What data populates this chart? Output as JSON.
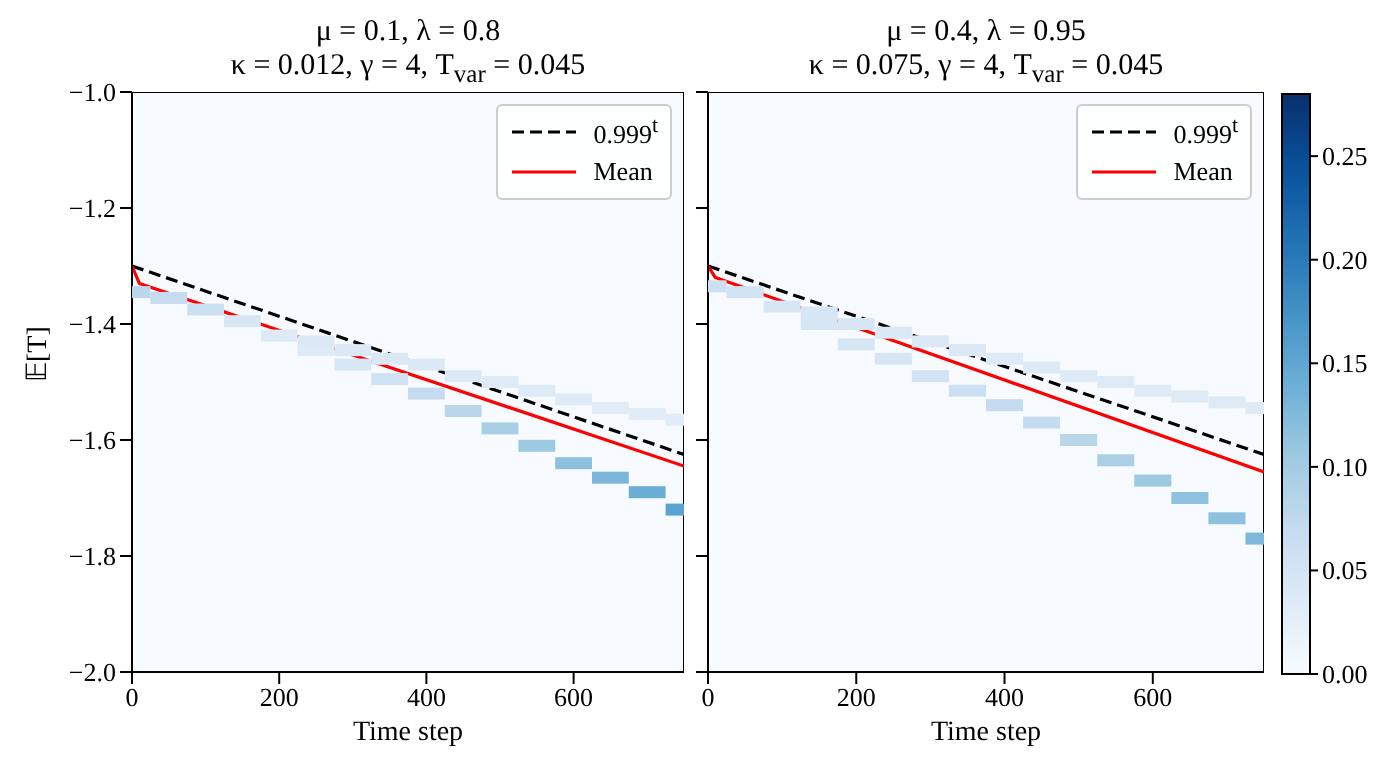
{
  "chart_data": [
    {
      "type": "line",
      "title": "μ = 0.1, λ = 0.8\nκ = 0.012, γ = 4, T$_{var}$ = 0.045",
      "xlabel": "Time step",
      "ylabel": "𝔼[T]",
      "xlim": [
        0,
        750
      ],
      "xticks": [
        0,
        200,
        400,
        600
      ],
      "ylim": [
        -2.0,
        -1.0
      ],
      "yticks": [
        {
          "value": -2.0,
          "label": "−2.0"
        },
        {
          "value": -1.8,
          "label": "−1.8"
        },
        {
          "value": -1.6,
          "label": "−1.6"
        },
        {
          "value": -1.4,
          "label": "−1.4"
        },
        {
          "value": -1.2,
          "label": "−1.2"
        },
        {
          "value": -1.0,
          "label": "−1.0"
        }
      ],
      "legend": "top right",
      "series": [
        {
          "type": "scatter",
          "marker": "square",
          "x": [
            0,
            50,
            100,
            150,
            200,
            250,
            300,
            350,
            400,
            450,
            500,
            550,
            600,
            650,
            700,
            750
          ],
          "values": [
            -1.345,
            -1.355,
            -1.375,
            -1.395,
            -1.42,
            -1.445,
            -1.47,
            -1.495,
            -1.52,
            -1.55,
            -1.58,
            -1.61,
            -1.64,
            -1.665,
            -1.69,
            -1.72
          ],
          "colors": [
            "#bad6eb",
            "#c6dbef",
            "#cde0f1",
            "#d8e7f5",
            "#deebf7",
            "#deebf7",
            "#d8e7f5",
            "#d0e1f2",
            "#c6dbef",
            "#bad6eb",
            "#a9cfe5",
            "#9ecae1",
            "#8cc0dd",
            "#7ab6d9",
            "#6aaed6",
            "#5ba3d0"
          ]
        },
        {
          "type": "scatter",
          "marker": "square",
          "x": [
            250,
            300,
            350,
            400,
            450,
            500,
            550,
            600,
            650,
            700,
            750
          ],
          "values": [
            -1.43,
            -1.445,
            -1.46,
            -1.47,
            -1.49,
            -1.5,
            -1.515,
            -1.53,
            -1.545,
            -1.555,
            -1.565
          ],
          "colors": [
            "#dbe9f6",
            "#dbe9f6",
            "#dbe9f6",
            "#dbe9f6",
            "#dbe9f6",
            "#deebf7",
            "#deebf7",
            "#deebf7",
            "#e0ecf8",
            "#e0ecf8",
            "#e0ecf8"
          ]
        },
        {
          "name": "0.999$^{t}$",
          "color": "#000000",
          "line_style": "dashed",
          "marker": "none",
          "x": [
            0,
            750
          ],
          "values": [
            -1.3,
            -1.625
          ]
        },
        {
          "name": "Mean",
          "color": "#ff0000",
          "line_style": "solid",
          "marker": "none",
          "x": [
            0,
            10,
            750
          ],
          "values": [
            -1.3,
            -1.33,
            -1.645
          ]
        }
      ]
    },
    {
      "type": "line",
      "title": "μ = 0.4, λ = 0.95\nκ = 0.075, γ = 4, T$_{var}$ = 0.045",
      "xlabel": "Time step",
      "xlim": [
        0,
        750
      ],
      "xticks": [
        0,
        200,
        400,
        600
      ],
      "ylim": [
        -2.0,
        -1.0
      ],
      "yticks": [
        {
          "value": -2.0,
          "label": null
        },
        {
          "value": -1.8,
          "label": null
        },
        {
          "value": -1.6,
          "label": null
        },
        {
          "value": -1.4,
          "label": null
        },
        {
          "value": -1.2,
          "label": null
        },
        {
          "value": -1.0,
          "label": null
        }
      ],
      "tick_labels": "x",
      "clim": [
        0,
        0.28
      ],
      "cticks": [
        {
          "value": 0,
          "label": "0.00"
        },
        {
          "value": 0.05,
          "label": "0.05"
        },
        {
          "value": 0.1,
          "label": "0.10"
        },
        {
          "value": 0.15,
          "label": "0.15"
        },
        {
          "value": 0.2,
          "label": "0.20"
        },
        {
          "value": 0.25,
          "label": "0.25"
        }
      ],
      "legend": "top right",
      "series": [
        {
          "type": "scatter",
          "marker": "square",
          "x": [
            0,
            50,
            100,
            150,
            200,
            250,
            300,
            350,
            400,
            450,
            500,
            550,
            600,
            650,
            700,
            750
          ],
          "values": [
            -1.335,
            -1.345,
            -1.37,
            -1.4,
            -1.435,
            -1.46,
            -1.49,
            -1.515,
            -1.54,
            -1.57,
            -1.6,
            -1.635,
            -1.67,
            -1.7,
            -1.735,
            -1.77
          ],
          "colors": [
            "#cce0f1",
            "#d2e3f3",
            "#d7e6f5",
            "#d7e6f5",
            "#d7e6f5",
            "#d7e6f5",
            "#d2e3f3",
            "#cce0f1",
            "#c6dbef",
            "#c6dbef",
            "#b9d6ea",
            "#abd0e6",
            "#9ecae1",
            "#8dc1dd",
            "#8dc1dd",
            "#7db8da"
          ]
        },
        {
          "type": "scatter",
          "marker": "square",
          "x": [
            150,
            200,
            250,
            300,
            350,
            400,
            450,
            500,
            550,
            600,
            650,
            700,
            750
          ],
          "values": [
            -1.38,
            -1.4,
            -1.415,
            -1.43,
            -1.445,
            -1.46,
            -1.475,
            -1.49,
            -1.5,
            -1.515,
            -1.525,
            -1.535,
            -1.545
          ],
          "colors": [
            "#d7e6f5",
            "#d7e6f5",
            "#dbe9f6",
            "#dbe9f6",
            "#dbe9f6",
            "#deebf7",
            "#deebf7",
            "#deebf7",
            "#deebf7",
            "#deebf7",
            "#deebf7",
            "#deebf7",
            "#deebf7"
          ]
        },
        {
          "name": "0.999$^{t}$",
          "color": "#000000",
          "line_style": "dashed",
          "marker": "none",
          "x": [
            0,
            750
          ],
          "values": [
            -1.3,
            -1.625
          ]
        },
        {
          "name": "Mean",
          "color": "#ff0000",
          "line_style": "solid",
          "marker": "none",
          "x": [
            0,
            10,
            750
          ],
          "values": [
            -1.3,
            -1.32,
            -1.655
          ]
        }
      ]
    }
  ]
}
